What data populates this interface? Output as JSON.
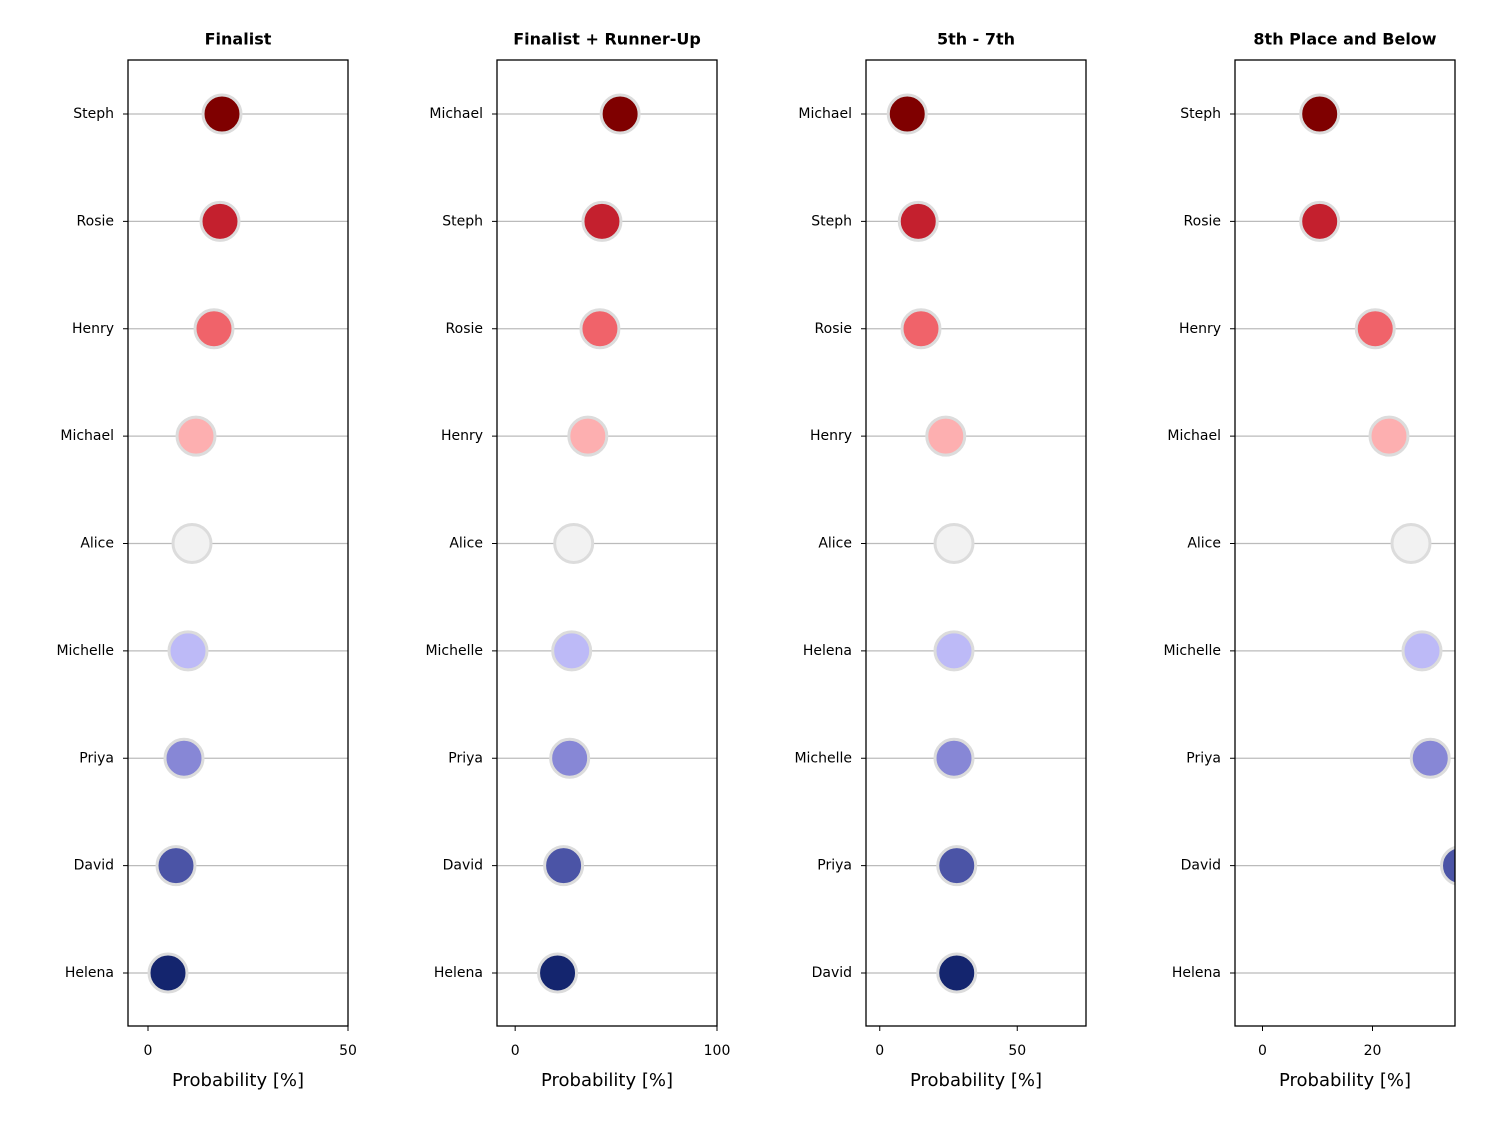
{
  "chart_data": [
    {
      "type": "dot",
      "title": "Finalist",
      "xlabel": "Probability [%]",
      "categories": [
        "Steph",
        "Rosie",
        "Henry",
        "Michael",
        "Alice",
        "Michelle",
        "Priya",
        "David",
        "Helena"
      ],
      "values": [
        18.5,
        18,
        16.5,
        12,
        11,
        10,
        9,
        7,
        5
      ],
      "colors": [
        "#7f0000",
        "#c4202e",
        "#f0636a",
        "#fdafb0",
        "#f2f2f2",
        "#bdbaf7",
        "#8787d6",
        "#4b54a6",
        "#14256e"
      ],
      "xlim": [
        -5,
        50
      ],
      "xticks": [
        0,
        50
      ],
      "grid": true
    },
    {
      "type": "dot",
      "title": "Finalist + Runner-Up",
      "xlabel": "Probability [%]",
      "categories": [
        "Michael",
        "Steph",
        "Rosie",
        "Henry",
        "Alice",
        "Michelle",
        "Priya",
        "David",
        "Helena"
      ],
      "values": [
        52,
        43,
        42,
        36,
        29,
        28,
        27,
        24,
        21
      ],
      "colors": [
        "#7f0000",
        "#c4202e",
        "#f0636a",
        "#fdafb0",
        "#f2f2f2",
        "#bdbaf7",
        "#8787d6",
        "#4b54a6",
        "#14256e"
      ],
      "xlim": [
        -9,
        100
      ],
      "xticks": [
        0,
        100
      ],
      "grid": true
    },
    {
      "type": "dot",
      "title": "5th - 7th",
      "xlabel": "Probability [%]",
      "categories": [
        "Michael",
        "Steph",
        "Rosie",
        "Henry",
        "Alice",
        "Helena",
        "Michelle",
        "Priya",
        "David"
      ],
      "values": [
        10,
        14,
        15,
        24,
        27,
        27,
        27,
        28,
        28
      ],
      "colors": [
        "#7f0000",
        "#c4202e",
        "#f0636a",
        "#fdafb0",
        "#f2f2f2",
        "#bdbaf7",
        "#8787d6",
        "#4b54a6",
        "#14256e"
      ],
      "xlim": [
        -5,
        75
      ],
      "xticks": [
        0,
        50
      ],
      "grid": true
    },
    {
      "type": "dot",
      "title": "8th Place and Below",
      "xlabel": "Probability [%]",
      "categories": [
        "Steph",
        "Rosie",
        "Henry",
        "Michael",
        "Alice",
        "Michelle",
        "Priya",
        "David",
        "Helena"
      ],
      "values": [
        10.4,
        10.4,
        20.5,
        23,
        27,
        29,
        30.5,
        36,
        null
      ],
      "colors": [
        "#7f0000",
        "#c4202e",
        "#f0636a",
        "#fdafb0",
        "#f2f2f2",
        "#bdbaf7",
        "#8787d6",
        "#4b54a6",
        "#14256e"
      ],
      "xlim": [
        -5,
        35
      ],
      "xticks": [
        0,
        20
      ],
      "grid": true
    }
  ]
}
